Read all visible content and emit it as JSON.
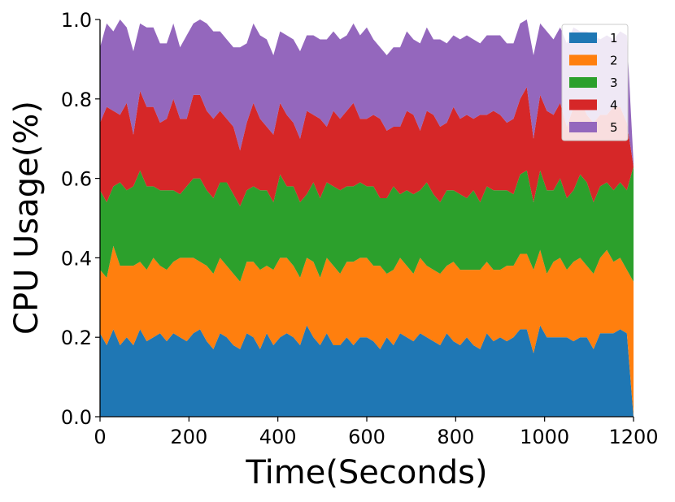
{
  "chart_data": {
    "type": "area",
    "stacked": true,
    "xlabel": "Time(Seconds)",
    "ylabel": "CPU Usage(%)",
    "xlim": [
      0,
      1200
    ],
    "ylim": [
      0,
      1.0
    ],
    "xticks": [
      "0",
      "200",
      "400",
      "600",
      "800",
      "1000",
      "1200"
    ],
    "yticks": [
      "0.0",
      "0.2",
      "0.4",
      "0.6",
      "0.8",
      "1.0"
    ],
    "grid": false,
    "legend_position": "top-right",
    "x": [
      0,
      15,
      30,
      45,
      60,
      75,
      90,
      105,
      120,
      135,
      150,
      165,
      180,
      195,
      210,
      225,
      240,
      255,
      270,
      285,
      300,
      315,
      330,
      345,
      360,
      375,
      390,
      405,
      420,
      435,
      450,
      465,
      480,
      495,
      510,
      525,
      540,
      555,
      570,
      585,
      600,
      615,
      630,
      645,
      660,
      675,
      690,
      705,
      720,
      735,
      750,
      765,
      780,
      795,
      810,
      825,
      840,
      855,
      870,
      885,
      900,
      915,
      930,
      945,
      960,
      975,
      990,
      1005,
      1020,
      1035,
      1050,
      1065,
      1080,
      1095,
      1110,
      1125,
      1140,
      1155,
      1170,
      1185,
      1200
    ],
    "series": [
      {
        "name": "1",
        "color": "#1f77b4",
        "values": [
          0.21,
          0.18,
          0.22,
          0.18,
          0.2,
          0.18,
          0.22,
          0.19,
          0.2,
          0.21,
          0.19,
          0.21,
          0.2,
          0.19,
          0.21,
          0.22,
          0.19,
          0.17,
          0.21,
          0.2,
          0.18,
          0.17,
          0.21,
          0.2,
          0.17,
          0.21,
          0.18,
          0.2,
          0.21,
          0.2,
          0.18,
          0.23,
          0.2,
          0.18,
          0.21,
          0.18,
          0.18,
          0.2,
          0.18,
          0.2,
          0.2,
          0.19,
          0.17,
          0.2,
          0.18,
          0.21,
          0.2,
          0.19,
          0.21,
          0.2,
          0.19,
          0.18,
          0.21,
          0.19,
          0.18,
          0.2,
          0.18,
          0.17,
          0.21,
          0.19,
          0.2,
          0.19,
          0.2,
          0.22,
          0.22,
          0.16,
          0.23,
          0.2,
          0.2,
          0.2,
          0.2,
          0.19,
          0.2,
          0.2,
          0.17,
          0.21,
          0.21,
          0.21,
          0.22,
          0.21,
          0.0
        ]
      },
      {
        "name": "2",
        "color": "#ff7f0e",
        "values": [
          0.16,
          0.17,
          0.21,
          0.2,
          0.18,
          0.2,
          0.17,
          0.18,
          0.2,
          0.17,
          0.18,
          0.18,
          0.2,
          0.21,
          0.19,
          0.17,
          0.19,
          0.19,
          0.19,
          0.18,
          0.18,
          0.17,
          0.18,
          0.19,
          0.2,
          0.17,
          0.19,
          0.2,
          0.19,
          0.18,
          0.17,
          0.17,
          0.19,
          0.17,
          0.19,
          0.2,
          0.18,
          0.19,
          0.21,
          0.2,
          0.2,
          0.19,
          0.21,
          0.16,
          0.19,
          0.19,
          0.18,
          0.17,
          0.19,
          0.18,
          0.18,
          0.18,
          0.17,
          0.2,
          0.19,
          0.17,
          0.19,
          0.2,
          0.18,
          0.18,
          0.17,
          0.19,
          0.18,
          0.19,
          0.19,
          0.21,
          0.19,
          0.16,
          0.19,
          0.2,
          0.17,
          0.2,
          0.2,
          0.18,
          0.19,
          0.19,
          0.21,
          0.18,
          0.18,
          0.16,
          0.34
        ]
      },
      {
        "name": "3",
        "color": "#2ca02c",
        "values": [
          0.2,
          0.19,
          0.15,
          0.21,
          0.19,
          0.2,
          0.23,
          0.21,
          0.18,
          0.19,
          0.2,
          0.18,
          0.16,
          0.18,
          0.2,
          0.21,
          0.19,
          0.19,
          0.19,
          0.21,
          0.2,
          0.19,
          0.18,
          0.19,
          0.2,
          0.19,
          0.17,
          0.21,
          0.18,
          0.2,
          0.19,
          0.16,
          0.2,
          0.2,
          0.19,
          0.2,
          0.21,
          0.19,
          0.19,
          0.19,
          0.18,
          0.2,
          0.17,
          0.19,
          0.21,
          0.16,
          0.19,
          0.2,
          0.17,
          0.21,
          0.19,
          0.18,
          0.19,
          0.18,
          0.19,
          0.18,
          0.2,
          0.17,
          0.19,
          0.2,
          0.2,
          0.19,
          0.18,
          0.2,
          0.21,
          0.17,
          0.2,
          0.21,
          0.18,
          0.2,
          0.18,
          0.18,
          0.21,
          0.21,
          0.18,
          0.18,
          0.17,
          0.18,
          0.19,
          0.2,
          0.29
        ]
      },
      {
        "name": "4",
        "color": "#d62728",
        "values": [
          0.17,
          0.24,
          0.19,
          0.17,
          0.22,
          0.13,
          0.2,
          0.2,
          0.2,
          0.17,
          0.18,
          0.23,
          0.19,
          0.17,
          0.21,
          0.21,
          0.2,
          0.2,
          0.18,
          0.16,
          0.17,
          0.14,
          0.17,
          0.21,
          0.18,
          0.16,
          0.17,
          0.18,
          0.18,
          0.16,
          0.16,
          0.21,
          0.17,
          0.2,
          0.14,
          0.19,
          0.18,
          0.19,
          0.21,
          0.16,
          0.17,
          0.18,
          0.2,
          0.17,
          0.15,
          0.17,
          0.2,
          0.2,
          0.15,
          0.18,
          0.2,
          0.19,
          0.17,
          0.21,
          0.19,
          0.21,
          0.18,
          0.22,
          0.18,
          0.2,
          0.19,
          0.17,
          0.19,
          0.19,
          0.21,
          0.16,
          0.19,
          0.2,
          0.19,
          0.19,
          0.18,
          0.21,
          0.19,
          0.17,
          0.2,
          0.18,
          0.17,
          0.21,
          0.19,
          0.17,
          0.0
        ]
      },
      {
        "name": "5",
        "color": "#9467bd",
        "values": [
          0.19,
          0.21,
          0.2,
          0.24,
          0.19,
          0.21,
          0.17,
          0.2,
          0.2,
          0.2,
          0.19,
          0.19,
          0.18,
          0.21,
          0.18,
          0.19,
          0.22,
          0.22,
          0.2,
          0.2,
          0.2,
          0.26,
          0.2,
          0.2,
          0.21,
          0.22,
          0.2,
          0.18,
          0.2,
          0.21,
          0.22,
          0.19,
          0.2,
          0.2,
          0.22,
          0.2,
          0.2,
          0.19,
          0.2,
          0.21,
          0.23,
          0.19,
          0.18,
          0.19,
          0.2,
          0.2,
          0.2,
          0.19,
          0.22,
          0.21,
          0.19,
          0.22,
          0.2,
          0.18,
          0.2,
          0.2,
          0.2,
          0.18,
          0.2,
          0.19,
          0.2,
          0.2,
          0.19,
          0.19,
          0.17,
          0.21,
          0.18,
          0.2,
          0.19,
          0.19,
          0.21,
          0.2,
          0.17,
          0.21,
          0.22,
          0.19,
          0.2,
          0.17,
          0.19,
          0.22,
          0.01
        ]
      }
    ]
  }
}
